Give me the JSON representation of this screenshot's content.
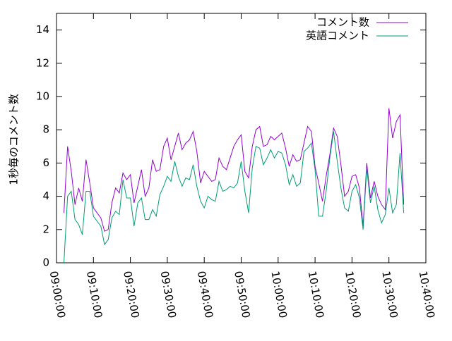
{
  "chart_data": {
    "type": "line",
    "ylabel": "1秒毎のコメント数",
    "x": [
      "09:02:00",
      "09:03:00",
      "09:04:00",
      "09:05:00",
      "09:06:00",
      "09:07:00",
      "09:08:00",
      "09:09:00",
      "09:10:00",
      "09:11:00",
      "09:12:00",
      "09:13:00",
      "09:14:00",
      "09:15:00",
      "09:16:00",
      "09:17:00",
      "09:18:00",
      "09:19:00",
      "09:20:00",
      "09:21:00",
      "09:22:00",
      "09:23:00",
      "09:24:00",
      "09:25:00",
      "09:26:00",
      "09:27:00",
      "09:28:00",
      "09:29:00",
      "09:30:00",
      "09:31:00",
      "09:32:00",
      "09:33:00",
      "09:34:00",
      "09:35:00",
      "09:36:00",
      "09:37:00",
      "09:38:00",
      "09:39:00",
      "09:40:00",
      "09:41:00",
      "09:42:00",
      "09:43:00",
      "09:44:00",
      "09:45:00",
      "09:46:00",
      "09:47:00",
      "09:48:00",
      "09:49:00",
      "09:50:00",
      "09:51:00",
      "09:52:00",
      "09:53:00",
      "09:54:00",
      "09:55:00",
      "09:56:00",
      "09:57:00",
      "09:58:00",
      "09:59:00",
      "10:00:00",
      "10:01:00",
      "10:02:00",
      "10:03:00",
      "10:04:00",
      "10:05:00",
      "10:06:00",
      "10:07:00",
      "10:08:00",
      "10:09:00",
      "10:10:00",
      "10:11:00",
      "10:12:00",
      "10:13:00",
      "10:14:00",
      "10:15:00",
      "10:16:00",
      "10:17:00",
      "10:18:00",
      "10:19:00",
      "10:20:00",
      "10:21:00",
      "10:22:00",
      "10:23:00",
      "10:24:00",
      "10:25:00",
      "10:26:00",
      "10:27:00",
      "10:28:00",
      "10:29:00",
      "10:30:00",
      "10:31:00",
      "10:32:00",
      "10:33:00",
      "10:34:00"
    ],
    "series": [
      {
        "name": "コメント数",
        "color": "#9400d3",
        "values": [
          3.0,
          7.0,
          5.5,
          3.5,
          4.5,
          3.7,
          6.2,
          4.8,
          3.3,
          3.0,
          2.7,
          1.9,
          2.0,
          3.6,
          4.5,
          4.2,
          5.4,
          5.0,
          5.3,
          3.6,
          4.6,
          5.6,
          4.0,
          4.5,
          6.2,
          5.5,
          5.6,
          7.0,
          7.5,
          6.2,
          7.0,
          7.8,
          6.8,
          7.2,
          7.4,
          7.9,
          6.7,
          4.8,
          5.5,
          5.2,
          4.9,
          5.0,
          6.3,
          5.8,
          5.6,
          6.3,
          7.0,
          7.4,
          7.7,
          5.5,
          5.1,
          7.0,
          8.0,
          8.2,
          7.0,
          7.1,
          7.6,
          7.4,
          7.6,
          7.8,
          6.9,
          5.8,
          6.5,
          6.1,
          6.2,
          7.2,
          8.2,
          7.9,
          5.8,
          4.8,
          3.7,
          5.2,
          6.5,
          8.1,
          7.6,
          5.9,
          4.0,
          4.3,
          5.2,
          5.3,
          4.5,
          2.2,
          6.0,
          3.9,
          4.9,
          4.0,
          3.5,
          3.2,
          9.3,
          7.5,
          8.5,
          8.9,
          3.5
        ]
      },
      {
        "name": "英語コメント",
        "color": "#009e73",
        "values": [
          0.0,
          4.0,
          4.3,
          2.6,
          2.3,
          1.7,
          4.3,
          4.3,
          2.8,
          2.5,
          2.2,
          1.1,
          1.4,
          2.7,
          3.1,
          2.9,
          5.0,
          3.9,
          3.9,
          2.2,
          3.6,
          3.9,
          2.6,
          2.6,
          3.2,
          2.8,
          4.1,
          4.6,
          5.2,
          4.9,
          6.1,
          5.2,
          4.6,
          5.1,
          5.0,
          5.9,
          4.6,
          3.7,
          3.3,
          4.0,
          3.8,
          3.7,
          4.9,
          4.3,
          4.4,
          4.6,
          4.5,
          4.8,
          6.1,
          4.3,
          3.0,
          5.7,
          7.0,
          6.9,
          5.9,
          6.3,
          6.8,
          6.3,
          6.7,
          6.6,
          5.9,
          4.7,
          5.3,
          4.6,
          4.8,
          6.7,
          6.9,
          7.2,
          5.6,
          2.8,
          2.8,
          4.3,
          6.3,
          7.9,
          6.1,
          4.5,
          3.3,
          3.1,
          4.3,
          4.7,
          3.9,
          2.0,
          5.7,
          3.6,
          4.6,
          3.2,
          2.4,
          2.9,
          4.5,
          3.0,
          3.5,
          6.6,
          3.0
        ]
      }
    ],
    "xlim": [
      "09:00:00",
      "10:40:00"
    ],
    "xticks": [
      "09:00:00",
      "09:10:00",
      "09:20:00",
      "09:30:00",
      "09:40:00",
      "09:50:00",
      "10:00:00",
      "10:10:00",
      "10:20:00",
      "10:30:00",
      "10:40:00"
    ],
    "ylim": [
      0,
      15
    ],
    "yticks": [
      0,
      2,
      4,
      6,
      8,
      10,
      12,
      14
    ],
    "legend": "top right"
  }
}
